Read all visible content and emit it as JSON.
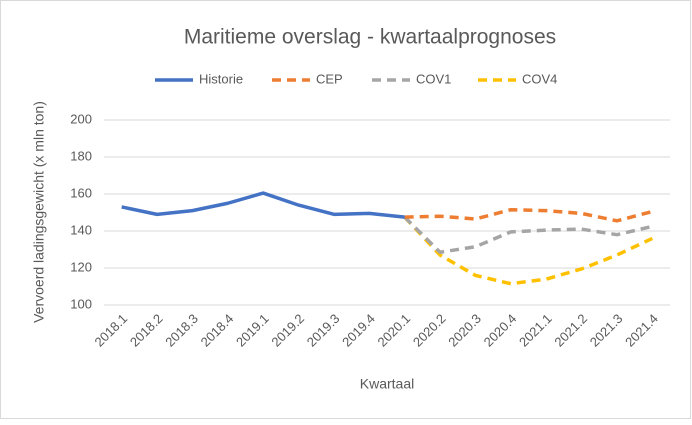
{
  "chart_data": {
    "type": "line",
    "title": "Maritieme overslag - kwartaalprognoses",
    "x_label": "Kwartaal",
    "y_label": "Vervoerd ladingsgewicht (x mln ton)",
    "categories": [
      "2018.1",
      "2018.2",
      "2018.3",
      "2018.4",
      "2019.1",
      "2019.2",
      "2019.3",
      "2019.4",
      "2020.1",
      "2020.2",
      "2020.3",
      "2020.4",
      "2021.1",
      "2021.2",
      "2021.3",
      "2021.4"
    ],
    "series": [
      {
        "name": "Historie",
        "color": "#4472c4",
        "dashed": false,
        "values": [
          153,
          149,
          151,
          155,
          160.5,
          154,
          149,
          149.5,
          147.5,
          null,
          null,
          null,
          null,
          null,
          null,
          null
        ]
      },
      {
        "name": "CEP",
        "color": "#ed7d31",
        "dashed": true,
        "values": [
          null,
          null,
          null,
          null,
          null,
          null,
          null,
          null,
          147.5,
          148,
          146.5,
          151.5,
          151,
          149.5,
          145.5,
          150.5
        ]
      },
      {
        "name": "COV1",
        "color": "#a5a5a5",
        "dashed": true,
        "values": [
          null,
          null,
          null,
          null,
          null,
          null,
          null,
          null,
          147.5,
          128.5,
          131.5,
          139.5,
          140.5,
          141,
          138,
          142.5
        ]
      },
      {
        "name": "COV4",
        "color": "#ffc000",
        "dashed": true,
        "values": [
          null,
          null,
          null,
          null,
          null,
          null,
          null,
          null,
          147.5,
          127,
          116,
          111.5,
          114,
          119.5,
          127,
          136
        ]
      }
    ],
    "ylim": [
      100,
      200
    ],
    "yticks": [
      100,
      120,
      140,
      160,
      180,
      200
    ],
    "grid": true,
    "legend": "top"
  }
}
